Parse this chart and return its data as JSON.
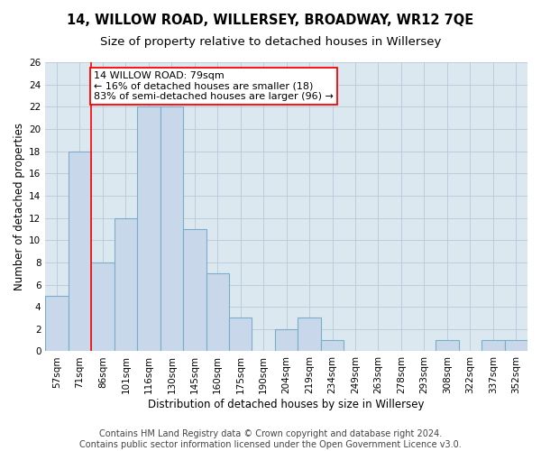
{
  "title": "14, WILLOW ROAD, WILLERSEY, BROADWAY, WR12 7QE",
  "subtitle": "Size of property relative to detached houses in Willersey",
  "xlabel": "Distribution of detached houses by size in Willersey",
  "ylabel": "Number of detached properties",
  "categories": [
    "57sqm",
    "71sqm",
    "86sqm",
    "101sqm",
    "116sqm",
    "130sqm",
    "145sqm",
    "160sqm",
    "175sqm",
    "190sqm",
    "204sqm",
    "219sqm",
    "234sqm",
    "249sqm",
    "263sqm",
    "278sqm",
    "293sqm",
    "308sqm",
    "322sqm",
    "337sqm",
    "352sqm"
  ],
  "values": [
    5,
    18,
    8,
    12,
    22,
    22,
    11,
    7,
    3,
    0,
    2,
    3,
    1,
    0,
    0,
    0,
    0,
    1,
    0,
    1,
    1
  ],
  "bar_color": "#c8d8ea",
  "bar_edge_color": "#7aaec8",
  "annotation_text": "14 WILLOW ROAD: 79sqm\n← 16% of detached houses are smaller (18)\n83% of semi-detached houses are larger (96) →",
  "annotation_box_color": "white",
  "annotation_box_edge_color": "red",
  "vline_color": "red",
  "vline_x": 1.5,
  "ylim": [
    0,
    26
  ],
  "yticks": [
    0,
    2,
    4,
    6,
    8,
    10,
    12,
    14,
    16,
    18,
    20,
    22,
    24,
    26
  ],
  "grid_color": "#b8c8d8",
  "background_color": "#dce8f0",
  "footer_line1": "Contains HM Land Registry data © Crown copyright and database right 2024.",
  "footer_line2": "Contains public sector information licensed under the Open Government Licence v3.0.",
  "title_fontsize": 10.5,
  "subtitle_fontsize": 9.5,
  "axis_label_fontsize": 8.5,
  "tick_fontsize": 7.5,
  "annotation_fontsize": 8,
  "footer_fontsize": 7
}
